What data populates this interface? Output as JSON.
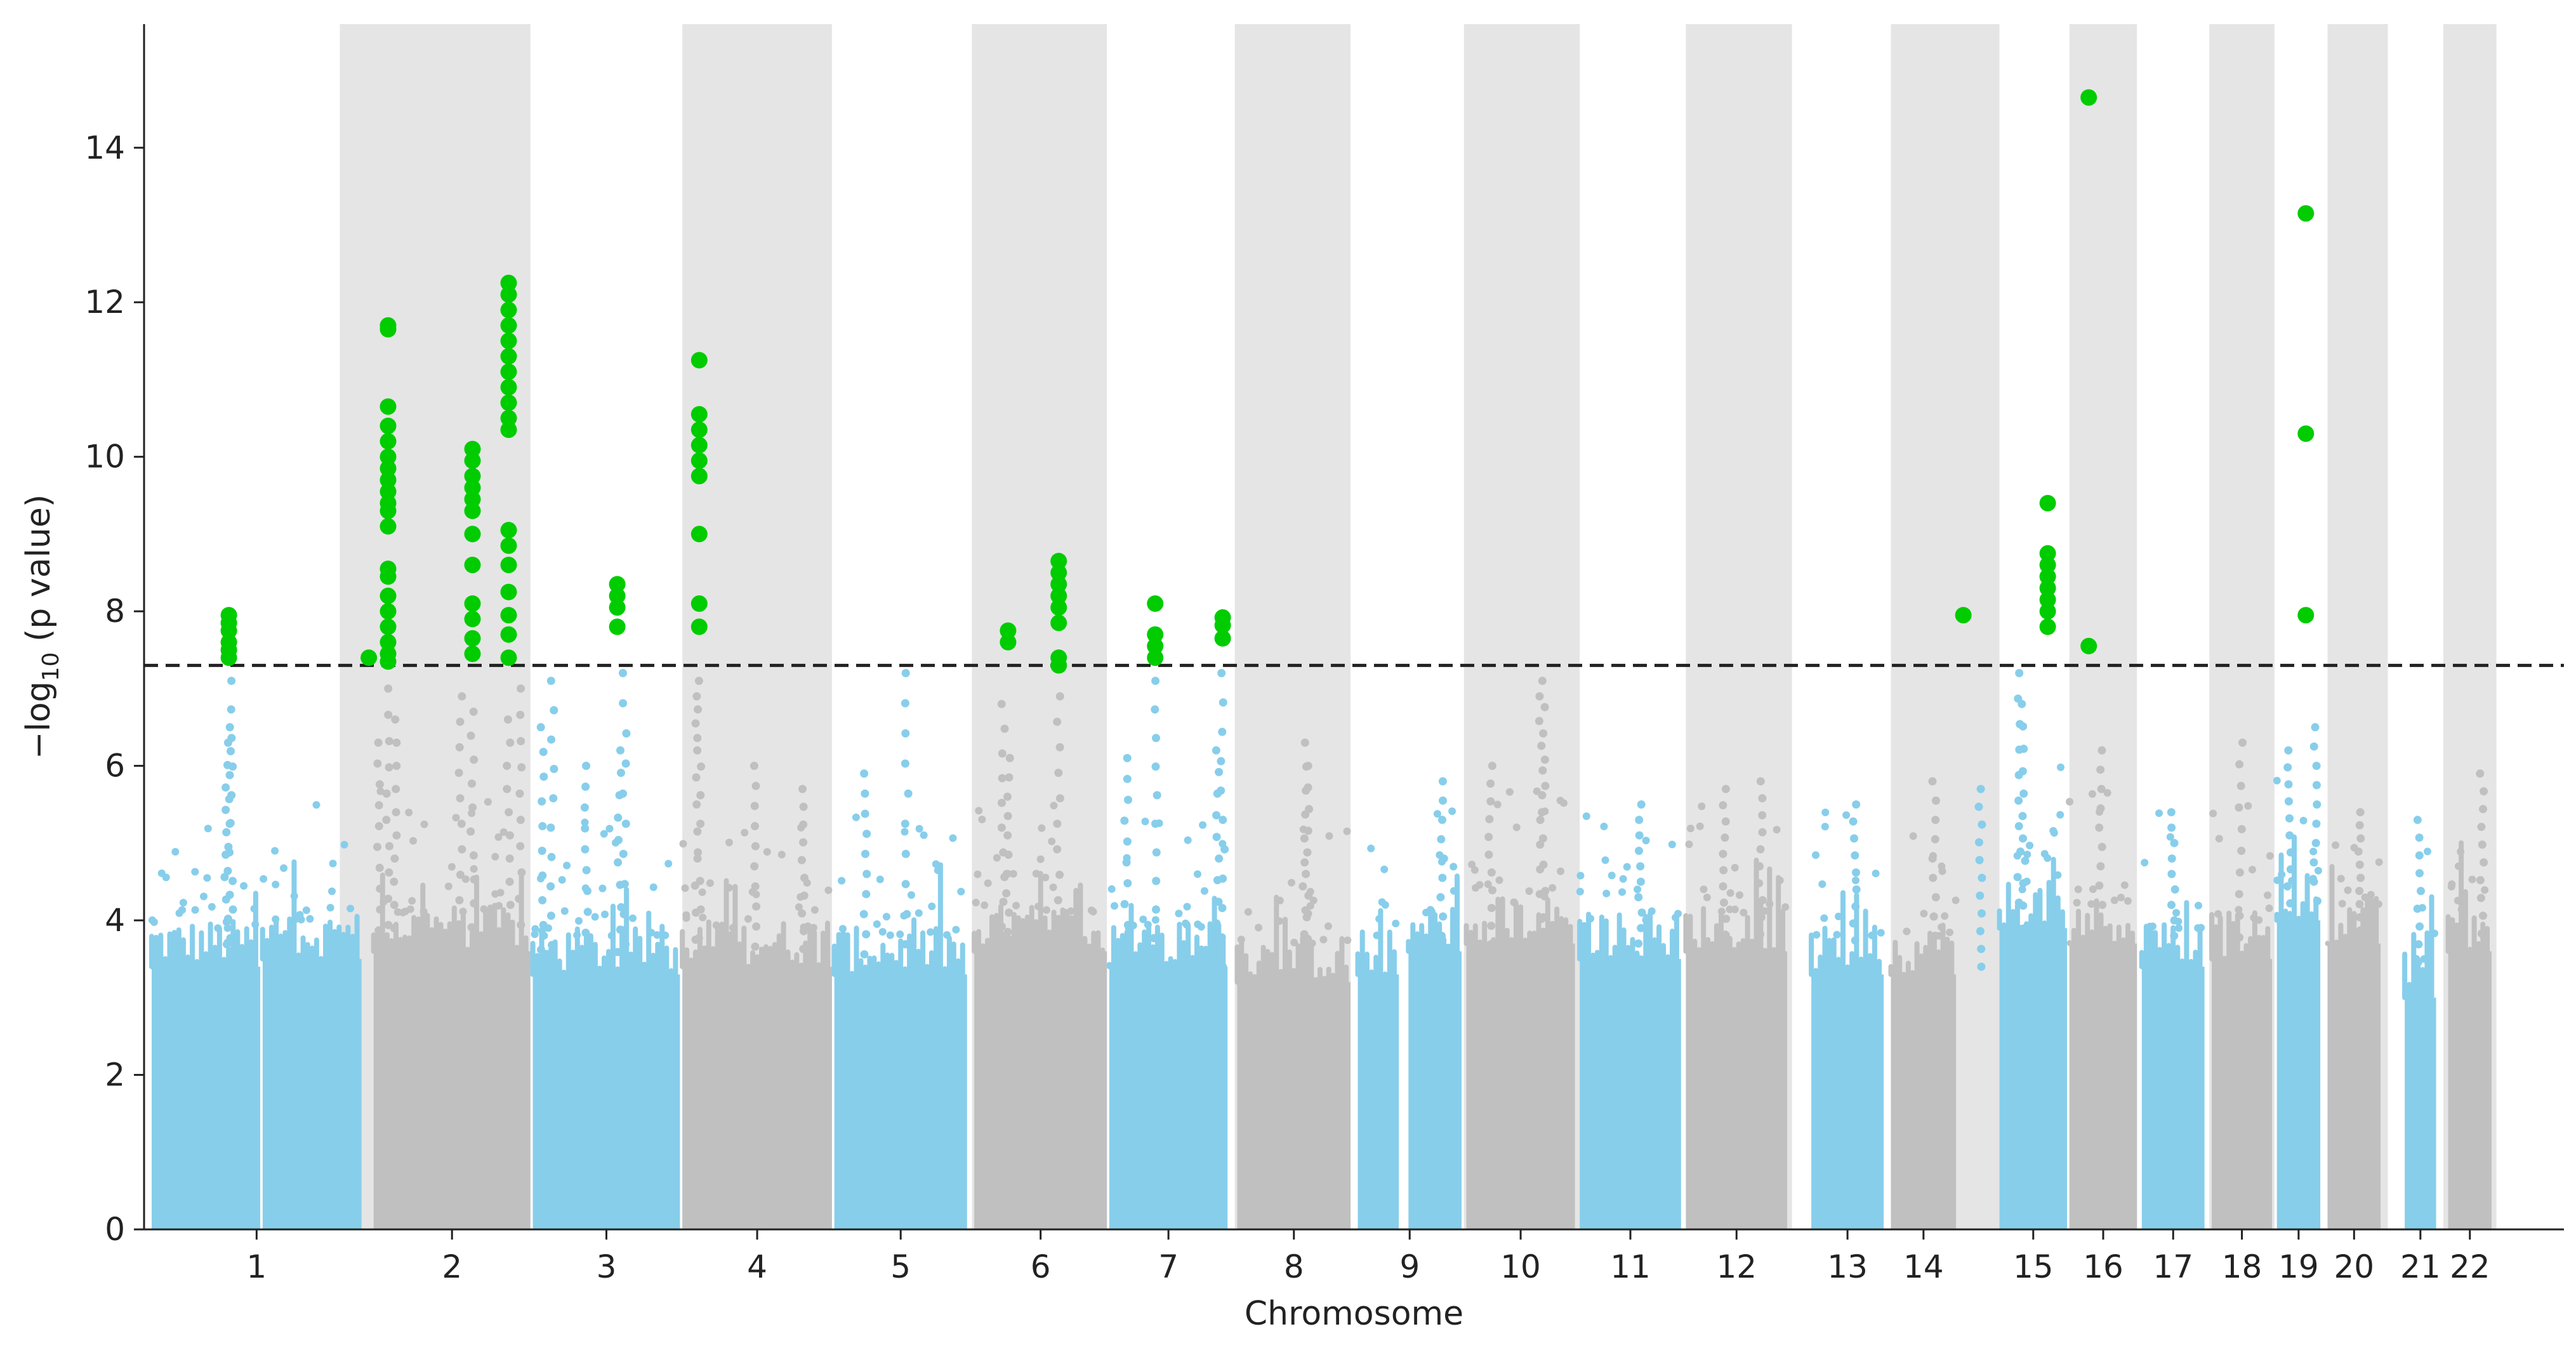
{
  "chart_data": {
    "type": "scatter",
    "title": "",
    "xlabel": "Chromosome",
    "ylabel_prefix": "−log",
    "ylabel_sub": "10",
    "ylabel_suffix": " (p value)",
    "ylim": [
      0,
      15.6
    ],
    "yticks": [
      0,
      2,
      4,
      6,
      8,
      10,
      12,
      14
    ],
    "significance_threshold": 7.3,
    "colors": {
      "odd": "#87ceeb",
      "even": "#c0c0c0",
      "significant": "#00cc00",
      "band": "#e5e5e5",
      "threshold": "#222222"
    },
    "chromosomes": [
      {
        "label": "1",
        "segments": [
          {
            "from": 0.0,
            "to": 0.045,
            "base": 3.4
          },
          {
            "from": 0.046,
            "to": 0.087,
            "base": 3.5
          }
        ]
      },
      {
        "label": "2",
        "segments": [
          {
            "from": 0.092,
            "to": 0.157,
            "base": 3.6
          }
        ]
      },
      {
        "label": "3",
        "segments": [
          {
            "from": 0.158,
            "to": 0.219,
            "base": 3.3
          }
        ]
      },
      {
        "label": "4",
        "segments": [
          {
            "from": 0.22,
            "to": 0.282,
            "base": 3.4
          }
        ]
      },
      {
        "label": "5",
        "segments": [
          {
            "from": 0.283,
            "to": 0.338,
            "base": 3.3
          }
        ]
      },
      {
        "label": "6",
        "segments": [
          {
            "from": 0.341,
            "to": 0.396,
            "base": 3.6
          }
        ]
      },
      {
        "label": "7",
        "segments": [
          {
            "from": 0.397,
            "to": 0.446,
            "base": 3.4
          }
        ]
      },
      {
        "label": "8",
        "segments": [
          {
            "from": 0.45,
            "to": 0.497,
            "base": 3.2
          }
        ]
      },
      {
        "label": "9",
        "segments": [
          {
            "from": 0.5,
            "to": 0.517,
            "base": 3.3
          },
          {
            "from": 0.521,
            "to": 0.543,
            "base": 3.6
          }
        ]
      },
      {
        "label": "10",
        "segments": [
          {
            "from": 0.545,
            "to": 0.59,
            "base": 3.7
          }
        ]
      },
      {
        "label": "11",
        "segments": [
          {
            "from": 0.592,
            "to": 0.634,
            "base": 3.5
          }
        ]
      },
      {
        "label": "12",
        "segments": [
          {
            "from": 0.636,
            "to": 0.678,
            "base": 3.6
          }
        ]
      },
      {
        "label": "13",
        "segments": [
          {
            "from": 0.688,
            "to": 0.718,
            "base": 3.3
          }
        ]
      },
      {
        "label": "14",
        "segments": [
          {
            "from": 0.721,
            "to": 0.748,
            "base": 3.3
          }
        ]
      },
      {
        "label": "15",
        "segments": [
          {
            "from": 0.766,
            "to": 0.794,
            "base": 3.9
          }
        ]
      },
      {
        "label": "16",
        "segments": [
          {
            "from": 0.795,
            "to": 0.823,
            "base": 3.7
          }
        ]
      },
      {
        "label": "17",
        "segments": [
          {
            "from": 0.825,
            "to": 0.851,
            "base": 3.4
          }
        ]
      },
      {
        "label": "18",
        "segments": [
          {
            "from": 0.854,
            "to": 0.879,
            "base": 3.5
          }
        ]
      },
      {
        "label": "19",
        "segments": [
          {
            "from": 0.881,
            "to": 0.899,
            "base": 4.0
          }
        ]
      },
      {
        "label": "20",
        "segments": [
          {
            "from": 0.902,
            "to": 0.924,
            "base": 3.7
          }
        ]
      },
      {
        "label": "21",
        "segments": [
          {
            "from": 0.934,
            "to": 0.947,
            "base": 3.0
          }
        ]
      },
      {
        "label": "22",
        "segments": [
          {
            "from": 0.952,
            "to": 0.97,
            "base": 3.6
          }
        ]
      }
    ],
    "bands": [
      {
        "from": 0.078,
        "to": 0.157
      },
      {
        "from": 0.22,
        "to": 0.282
      },
      {
        "from": 0.34,
        "to": 0.396
      },
      {
        "from": 0.449,
        "to": 0.497
      },
      {
        "from": 0.544,
        "to": 0.592
      },
      {
        "from": 0.636,
        "to": 0.68
      },
      {
        "from": 0.721,
        "to": 0.766
      },
      {
        "from": 0.795,
        "to": 0.823
      },
      {
        "from": 0.853,
        "to": 0.88
      },
      {
        "from": 0.902,
        "to": 0.927
      },
      {
        "from": 0.95,
        "to": 0.972
      }
    ],
    "sub_threshold_peaks": [
      {
        "x": 0.031,
        "y": 6.3
      },
      {
        "x": 0.032,
        "y": 6.5
      },
      {
        "x": 0.033,
        "y": 7.1
      },
      {
        "x": 0.094,
        "y": 6.3
      },
      {
        "x": 0.098,
        "y": 7.0
      },
      {
        "x": 0.101,
        "y": 6.6
      },
      {
        "x": 0.128,
        "y": 6.9
      },
      {
        "x": 0.133,
        "y": 6.7
      },
      {
        "x": 0.148,
        "y": 6.6
      },
      {
        "x": 0.153,
        "y": 7.0
      },
      {
        "x": 0.162,
        "y": 6.5
      },
      {
        "x": 0.166,
        "y": 7.1
      },
      {
        "x": 0.18,
        "y": 6.0
      },
      {
        "x": 0.194,
        "y": 6.2
      },
      {
        "x": 0.196,
        "y": 7.2
      },
      {
        "x": 0.226,
        "y": 6.9
      },
      {
        "x": 0.227,
        "y": 7.1
      },
      {
        "x": 0.25,
        "y": 6.0
      },
      {
        "x": 0.27,
        "y": 5.7
      },
      {
        "x": 0.296,
        "y": 5.9
      },
      {
        "x": 0.313,
        "y": 7.2
      },
      {
        "x": 0.353,
        "y": 6.8
      },
      {
        "x": 0.355,
        "y": 6.1
      },
      {
        "x": 0.376,
        "y": 6.9
      },
      {
        "x": 0.404,
        "y": 6.1
      },
      {
        "x": 0.416,
        "y": 7.1
      },
      {
        "x": 0.442,
        "y": 6.2
      },
      {
        "x": 0.444,
        "y": 7.2
      },
      {
        "x": 0.478,
        "y": 6.3
      },
      {
        "x": 0.479,
        "y": 6.0
      },
      {
        "x": 0.535,
        "y": 5.8
      },
      {
        "x": 0.555,
        "y": 6.0
      },
      {
        "x": 0.576,
        "y": 6.9
      },
      {
        "x": 0.577,
        "y": 7.1
      },
      {
        "x": 0.617,
        "y": 5.5
      },
      {
        "x": 0.652,
        "y": 5.7
      },
      {
        "x": 0.667,
        "y": 5.8
      },
      {
        "x": 0.706,
        "y": 5.5
      },
      {
        "x": 0.739,
        "y": 5.8
      },
      {
        "x": 0.758,
        "y": 5.7
      },
      {
        "x": 0.774,
        "y": 7.2
      },
      {
        "x": 0.776,
        "y": 6.8
      },
      {
        "x": 0.808,
        "y": 6.2
      },
      {
        "x": 0.838,
        "y": 5.4
      },
      {
        "x": 0.866,
        "y": 6.3
      },
      {
        "x": 0.886,
        "y": 6.2
      },
      {
        "x": 0.897,
        "y": 6.5
      },
      {
        "x": 0.915,
        "y": 5.4
      },
      {
        "x": 0.94,
        "y": 5.3
      },
      {
        "x": 0.966,
        "y": 5.9
      }
    ],
    "significant": [
      {
        "x": 0.032,
        "y": 7.95
      },
      {
        "x": 0.032,
        "y": 7.85
      },
      {
        "x": 0.032,
        "y": 7.75
      },
      {
        "x": 0.032,
        "y": 7.6
      },
      {
        "x": 0.032,
        "y": 7.5
      },
      {
        "x": 0.032,
        "y": 7.4
      },
      {
        "x": 0.09,
        "y": 7.4
      },
      {
        "x": 0.098,
        "y": 7.35
      },
      {
        "x": 0.098,
        "y": 11.7
      },
      {
        "x": 0.098,
        "y": 11.65
      },
      {
        "x": 0.098,
        "y": 10.65
      },
      {
        "x": 0.098,
        "y": 10.4
      },
      {
        "x": 0.098,
        "y": 10.2
      },
      {
        "x": 0.098,
        "y": 10.0
      },
      {
        "x": 0.098,
        "y": 9.85
      },
      {
        "x": 0.098,
        "y": 9.7
      },
      {
        "x": 0.098,
        "y": 9.55
      },
      {
        "x": 0.098,
        "y": 9.4
      },
      {
        "x": 0.098,
        "y": 9.3
      },
      {
        "x": 0.098,
        "y": 9.1
      },
      {
        "x": 0.098,
        "y": 8.55
      },
      {
        "x": 0.098,
        "y": 8.45
      },
      {
        "x": 0.098,
        "y": 8.2
      },
      {
        "x": 0.098,
        "y": 8.0
      },
      {
        "x": 0.098,
        "y": 7.8
      },
      {
        "x": 0.098,
        "y": 7.6
      },
      {
        "x": 0.098,
        "y": 7.45
      },
      {
        "x": 0.133,
        "y": 10.1
      },
      {
        "x": 0.133,
        "y": 9.95
      },
      {
        "x": 0.133,
        "y": 9.75
      },
      {
        "x": 0.133,
        "y": 9.6
      },
      {
        "x": 0.133,
        "y": 9.45
      },
      {
        "x": 0.133,
        "y": 9.3
      },
      {
        "x": 0.133,
        "y": 9.0
      },
      {
        "x": 0.133,
        "y": 8.6
      },
      {
        "x": 0.133,
        "y": 8.1
      },
      {
        "x": 0.133,
        "y": 7.9
      },
      {
        "x": 0.133,
        "y": 7.65
      },
      {
        "x": 0.133,
        "y": 7.45
      },
      {
        "x": 0.148,
        "y": 12.25
      },
      {
        "x": 0.148,
        "y": 12.1
      },
      {
        "x": 0.148,
        "y": 11.9
      },
      {
        "x": 0.148,
        "y": 11.7
      },
      {
        "x": 0.148,
        "y": 11.5
      },
      {
        "x": 0.148,
        "y": 11.3
      },
      {
        "x": 0.148,
        "y": 11.1
      },
      {
        "x": 0.148,
        "y": 10.9
      },
      {
        "x": 0.148,
        "y": 10.7
      },
      {
        "x": 0.148,
        "y": 10.5
      },
      {
        "x": 0.148,
        "y": 10.35
      },
      {
        "x": 0.148,
        "y": 9.05
      },
      {
        "x": 0.148,
        "y": 8.85
      },
      {
        "x": 0.148,
        "y": 8.6
      },
      {
        "x": 0.148,
        "y": 8.25
      },
      {
        "x": 0.148,
        "y": 7.95
      },
      {
        "x": 0.148,
        "y": 7.7
      },
      {
        "x": 0.148,
        "y": 7.4
      },
      {
        "x": 0.193,
        "y": 8.35
      },
      {
        "x": 0.193,
        "y": 8.2
      },
      {
        "x": 0.193,
        "y": 8.05
      },
      {
        "x": 0.193,
        "y": 7.8
      },
      {
        "x": 0.227,
        "y": 11.25
      },
      {
        "x": 0.227,
        "y": 10.55
      },
      {
        "x": 0.227,
        "y": 10.35
      },
      {
        "x": 0.227,
        "y": 10.15
      },
      {
        "x": 0.227,
        "y": 9.95
      },
      {
        "x": 0.227,
        "y": 9.75
      },
      {
        "x": 0.227,
        "y": 9.0
      },
      {
        "x": 0.227,
        "y": 8.1
      },
      {
        "x": 0.227,
        "y": 7.8
      },
      {
        "x": 0.355,
        "y": 7.75
      },
      {
        "x": 0.355,
        "y": 7.6
      },
      {
        "x": 0.376,
        "y": 8.65
      },
      {
        "x": 0.376,
        "y": 8.5
      },
      {
        "x": 0.376,
        "y": 8.35
      },
      {
        "x": 0.376,
        "y": 8.2
      },
      {
        "x": 0.376,
        "y": 8.05
      },
      {
        "x": 0.376,
        "y": 7.85
      },
      {
        "x": 0.376,
        "y": 7.4
      },
      {
        "x": 0.376,
        "y": 7.3
      },
      {
        "x": 0.416,
        "y": 8.1
      },
      {
        "x": 0.416,
        "y": 7.7
      },
      {
        "x": 0.416,
        "y": 7.55
      },
      {
        "x": 0.416,
        "y": 7.4
      },
      {
        "x": 0.444,
        "y": 7.92
      },
      {
        "x": 0.444,
        "y": 7.82
      },
      {
        "x": 0.444,
        "y": 7.65
      },
      {
        "x": 0.751,
        "y": 7.95
      },
      {
        "x": 0.786,
        "y": 9.4
      },
      {
        "x": 0.786,
        "y": 8.75
      },
      {
        "x": 0.786,
        "y": 8.6
      },
      {
        "x": 0.786,
        "y": 8.45
      },
      {
        "x": 0.786,
        "y": 8.3
      },
      {
        "x": 0.786,
        "y": 8.15
      },
      {
        "x": 0.786,
        "y": 8.0
      },
      {
        "x": 0.786,
        "y": 7.8
      },
      {
        "x": 0.803,
        "y": 14.65
      },
      {
        "x": 0.803,
        "y": 7.55
      },
      {
        "x": 0.893,
        "y": 13.15
      },
      {
        "x": 0.893,
        "y": 10.3
      },
      {
        "x": 0.893,
        "y": 7.95
      }
    ]
  }
}
